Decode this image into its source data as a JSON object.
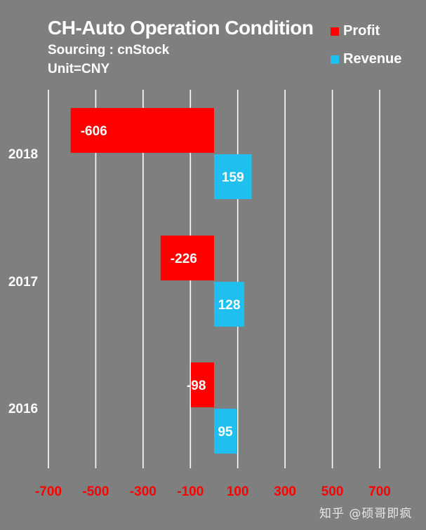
{
  "chart_data": {
    "type": "bar",
    "orientation": "horizontal",
    "title": "CH-Auto Operation Condition",
    "subtitle_lines": [
      "Sourcing : cnStock",
      "Unit=CNY"
    ],
    "categories": [
      "2018",
      "2017",
      "2016"
    ],
    "series": [
      {
        "name": "Profit",
        "color": "#ff0000",
        "values": [
          -606,
          -226,
          -98
        ]
      },
      {
        "name": "Revenue",
        "color": "#1fbff0",
        "values": [
          159,
          128,
          95
        ]
      }
    ],
    "xlim": [
      -700,
      700
    ],
    "x_ticks": [
      -700,
      -500,
      -300,
      -100,
      100,
      300,
      500,
      700
    ],
    "x_tick_color": "#ff0000",
    "gridlines": "vertical",
    "legend_position": "top-right"
  },
  "watermark": "知乎 @硕哥即疯",
  "colors": {
    "background": "#7f7f7f",
    "gridline": "#ffffff",
    "text": "#ffffff"
  }
}
